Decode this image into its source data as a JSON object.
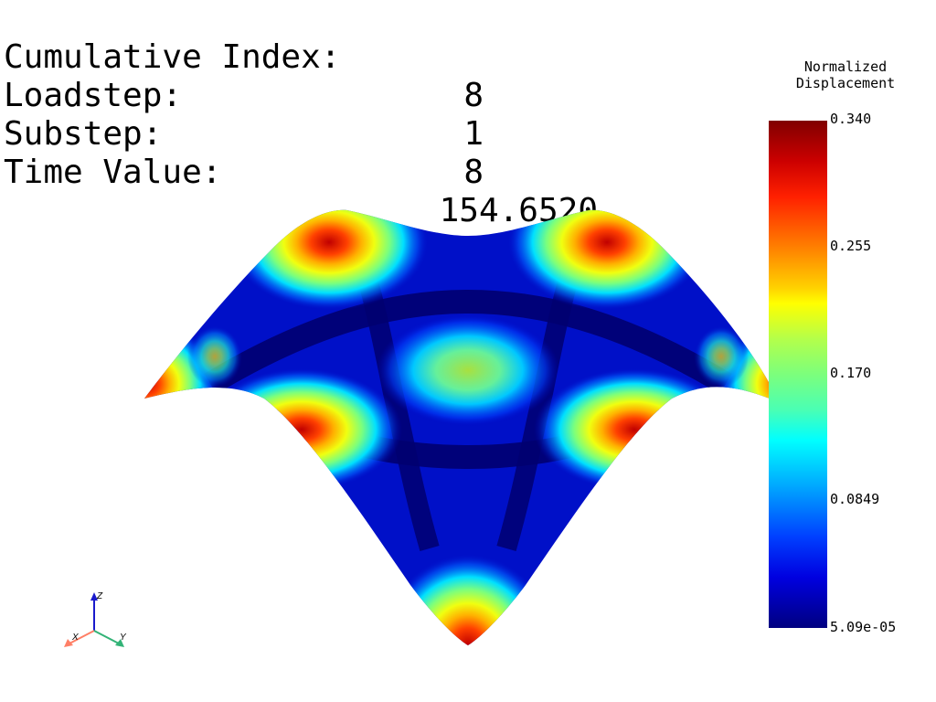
{
  "info": {
    "cumulative_index_label": "Cumulative Index:",
    "cumulative_index_value": "8",
    "loadstep_label": "Loadstep:",
    "loadstep_value": "1",
    "substep_label": "Substep:",
    "substep_value": "8",
    "time_value_label": "Time Value:",
    "time_value_value": "154.6520"
  },
  "legend": {
    "title_line1": "Normalized",
    "title_line2": "Displacement",
    "ticks": [
      "0.340",
      "0.255",
      "0.170",
      "0.0849",
      "5.09e-05"
    ],
    "colormap": "jet"
  },
  "triad": {
    "x_label": "X",
    "y_label": "Y",
    "z_label": "Z",
    "x_color": "#ff7f66",
    "y_color": "#33b377",
    "z_color": "#1a1acc"
  }
}
